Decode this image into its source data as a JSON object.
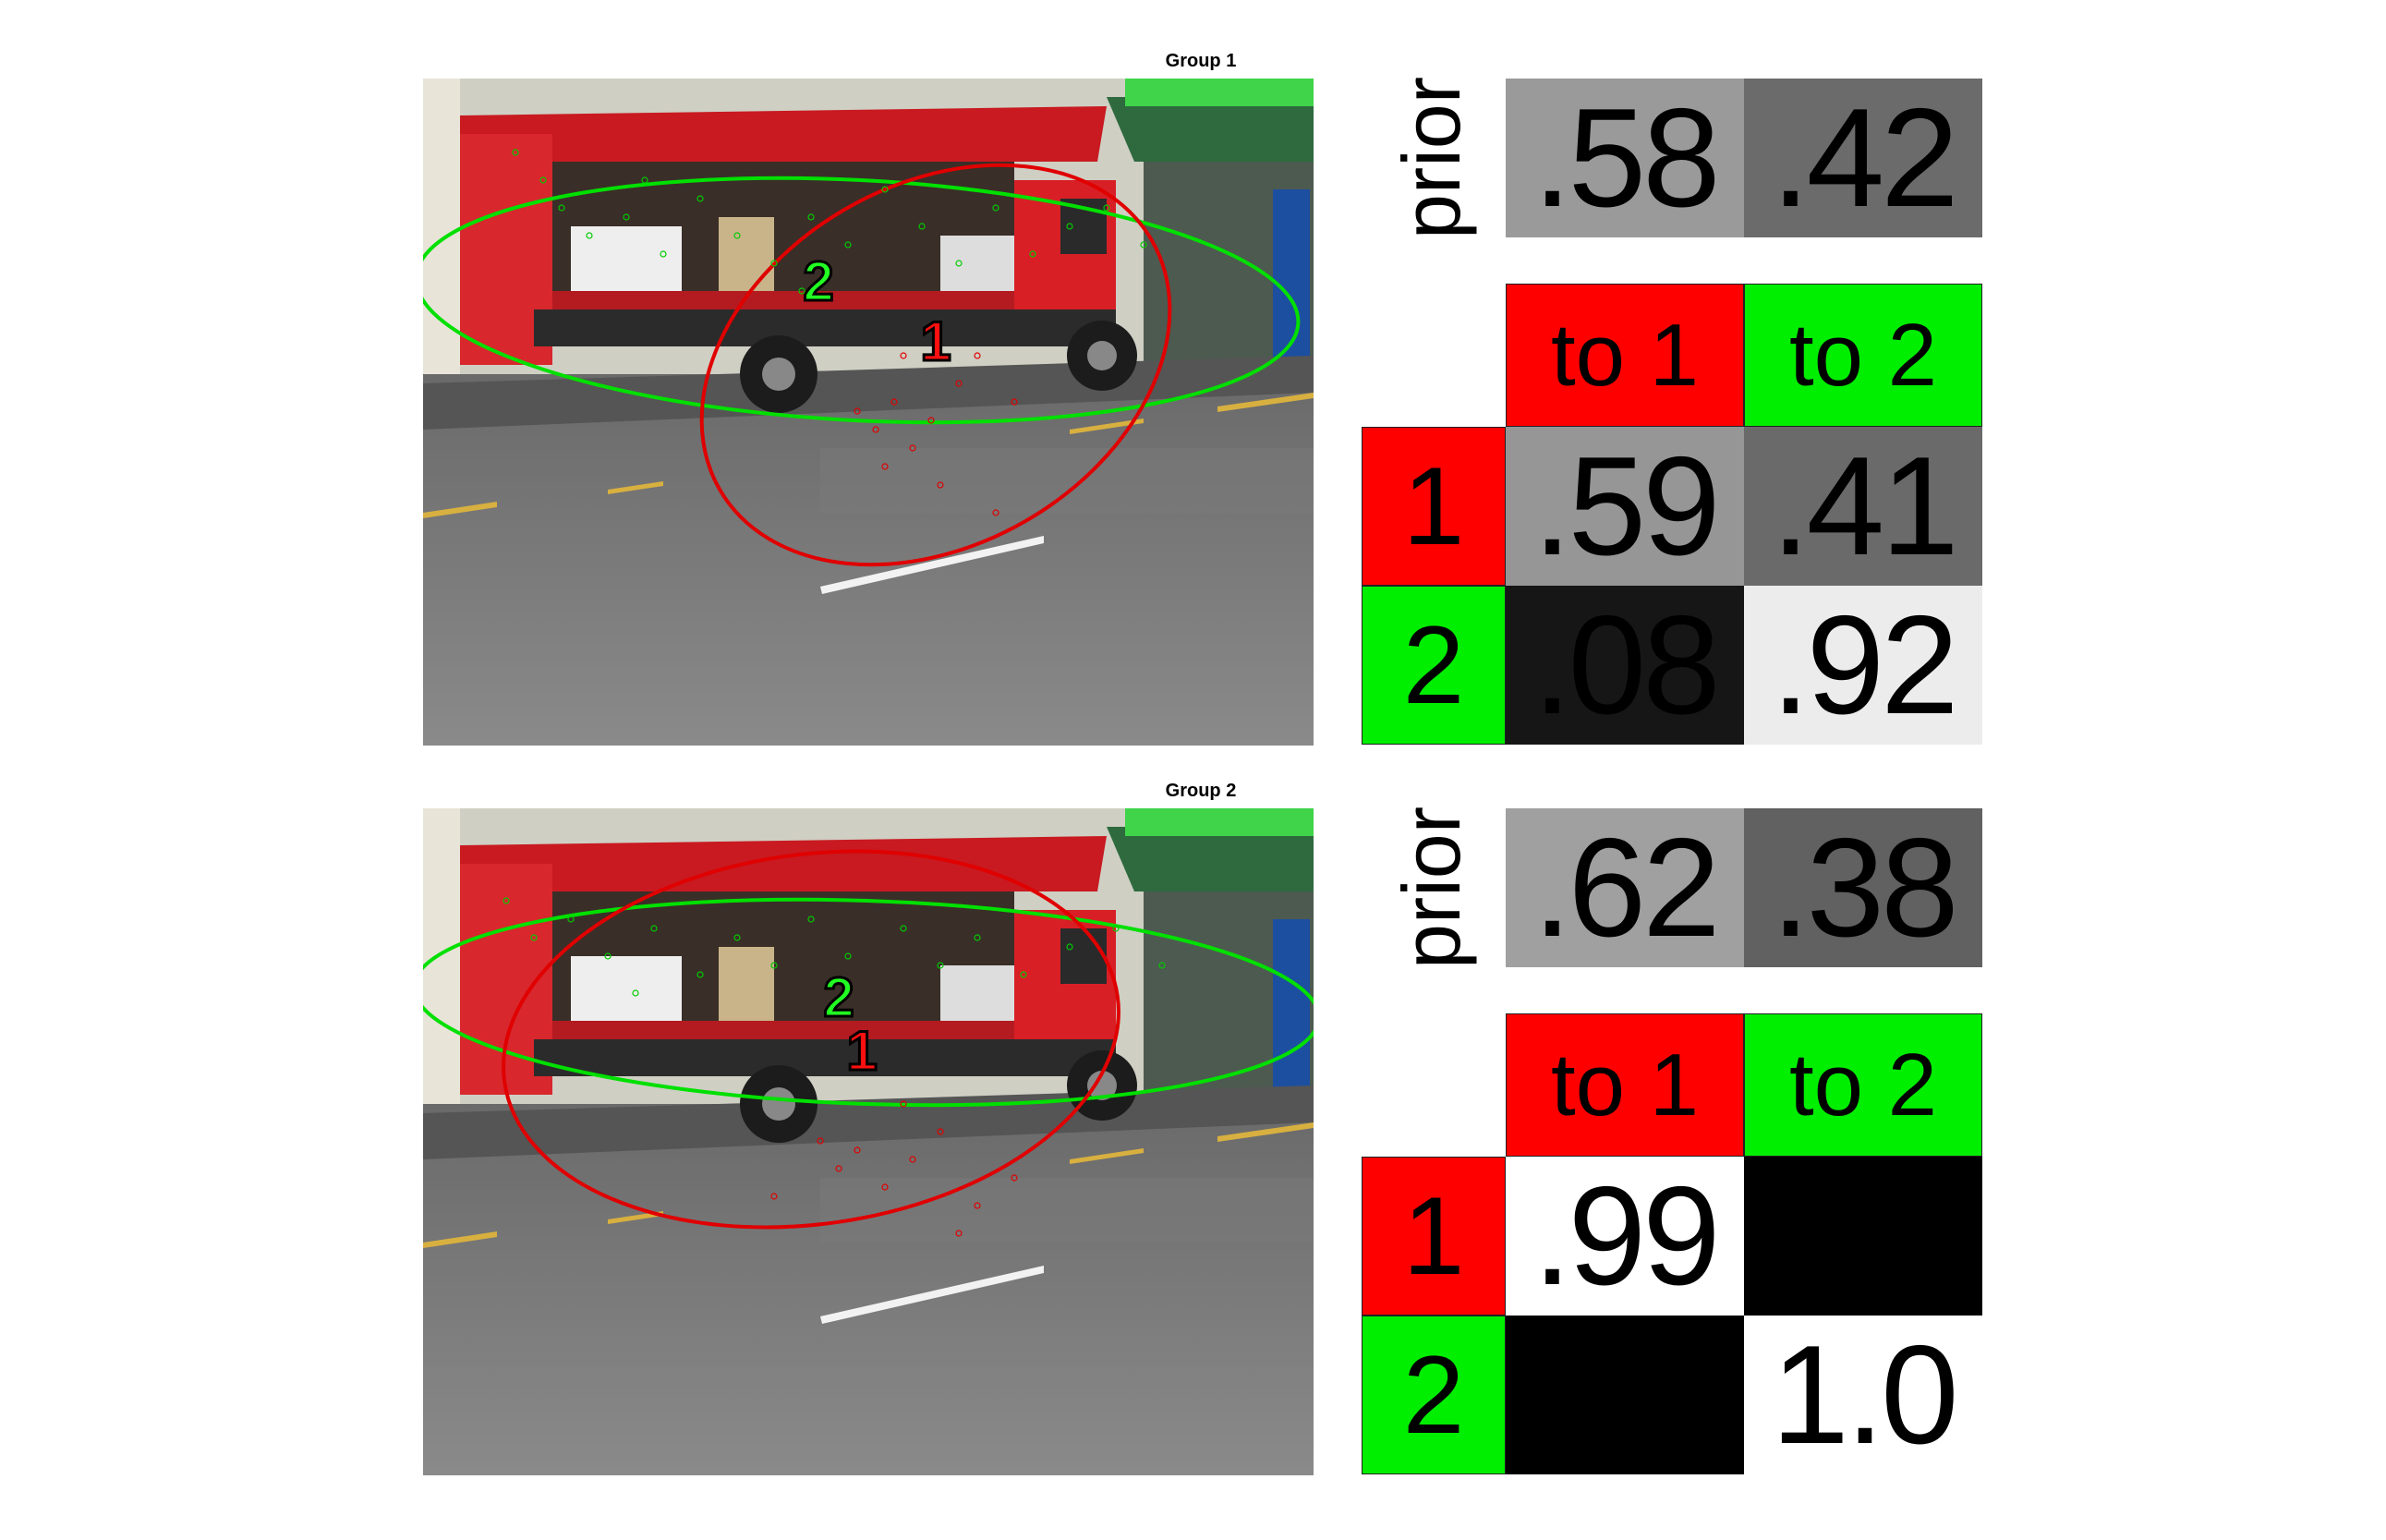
{
  "groups": [
    {
      "title": "Group 1",
      "prior_label": "prior",
      "prior": [
        ".58",
        ".42"
      ],
      "prior_colors": [
        "#9a9a9a",
        "#6b6b6b"
      ],
      "headers": [
        "to 1",
        "to 2"
      ],
      "rows": [
        {
          "label": "1",
          "values": [
            ".59",
            ".41"
          ],
          "colors": [
            "#969696",
            "#6a6a6a"
          ]
        },
        {
          "label": "2",
          "values": [
            ".08",
            ".92"
          ],
          "colors": [
            "#161616",
            "#ececec"
          ]
        }
      ],
      "markers": [
        "1",
        "2"
      ]
    },
    {
      "title": "Group 2",
      "prior_label": "prior",
      "prior": [
        ".62",
        ".38"
      ],
      "prior_colors": [
        "#a0a0a0",
        "#616161"
      ],
      "headers": [
        "to 1",
        "to 2"
      ],
      "rows": [
        {
          "label": "1",
          "values": [
            ".99",
            ""
          ],
          "colors": [
            "#ffffff",
            "#000000"
          ]
        },
        {
          "label": "2",
          "values": [
            "",
            "1.0"
          ],
          "colors": [
            "#000000",
            "#ffffff"
          ]
        }
      ],
      "markers": [
        "1",
        "2"
      ]
    }
  ],
  "colors": {
    "state1": "#ff0000",
    "state2": "#00ee00"
  }
}
